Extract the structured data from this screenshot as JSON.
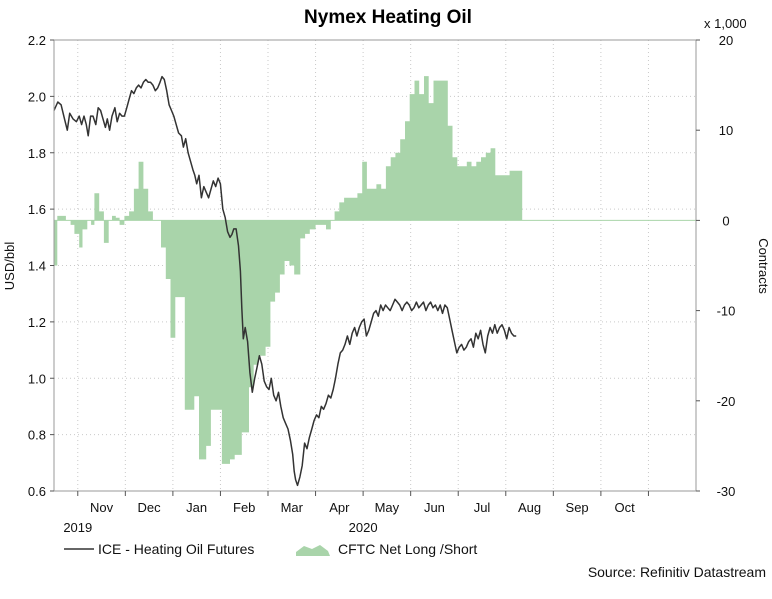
{
  "chart_data": {
    "type": "line+area",
    "title": "Nymex Heating Oil",
    "right_axis_multiplier": "x 1,000",
    "y_left": {
      "label": "USD/bbl",
      "range": [
        0.6,
        2.2
      ],
      "ticks": [
        "0.6",
        "0.8",
        "1.0",
        "1.2",
        "1.4",
        "1.6",
        "1.8",
        "2.0",
        "2.2"
      ]
    },
    "y_right": {
      "label": "Contracts",
      "range": [
        -30,
        20
      ],
      "ticks": [
        "-30",
        "-20",
        "-10",
        "0",
        "10",
        "20"
      ]
    },
    "x_axis": {
      "months": [
        "Nov",
        "Dec",
        "Jan",
        "Feb",
        "Mar",
        "Apr",
        "May",
        "Jun",
        "Jul",
        "Aug",
        "Sep",
        "Oct"
      ],
      "years": [
        "2019",
        "2020"
      ],
      "start_month_index": 9.5,
      "end_month_index": 22.95
    },
    "grid": true,
    "legend_position": "bottom",
    "legend": [
      "ICE - Heating Oil Futures",
      "CFTC Net Long /Short"
    ],
    "colors": {
      "line": "#333333",
      "area": "#a9d4aa",
      "grid": "#c9c9c9",
      "frame": "#9a9a9a"
    },
    "source": "Source: Refinitiv Datastream",
    "series": [
      {
        "name": "ICE - Heating Oil Futures",
        "axis": "left",
        "type": "line",
        "points": [
          [
            9.5,
            1.95
          ],
          [
            9.58,
            1.98
          ],
          [
            9.65,
            1.97
          ],
          [
            9.72,
            1.92
          ],
          [
            9.78,
            1.88
          ],
          [
            9.83,
            1.94
          ],
          [
            9.9,
            1.92
          ],
          [
            9.97,
            1.91
          ],
          [
            10.03,
            1.93
          ],
          [
            10.08,
            1.9
          ],
          [
            10.13,
            1.93
          ],
          [
            10.18,
            1.9
          ],
          [
            10.22,
            1.86
          ],
          [
            10.27,
            1.93
          ],
          [
            10.32,
            1.93
          ],
          [
            10.38,
            1.9
          ],
          [
            10.43,
            1.96
          ],
          [
            10.48,
            1.95
          ],
          [
            10.53,
            1.92
          ],
          [
            10.58,
            1.89
          ],
          [
            10.62,
            1.92
          ],
          [
            10.67,
            1.88
          ],
          [
            10.72,
            1.93
          ],
          [
            10.78,
            1.96
          ],
          [
            10.83,
            1.91
          ],
          [
            10.88,
            1.94
          ],
          [
            10.93,
            1.93
          ],
          [
            10.98,
            1.93
          ],
          [
            11.03,
            1.96
          ],
          [
            11.08,
            1.99
          ],
          [
            11.13,
            2.02
          ],
          [
            11.18,
            2.01
          ],
          [
            11.23,
            2.03
          ],
          [
            11.28,
            2.04
          ],
          [
            11.33,
            2.03
          ],
          [
            11.38,
            2.05
          ],
          [
            11.43,
            2.06
          ],
          [
            11.48,
            2.05
          ],
          [
            11.53,
            2.05
          ],
          [
            11.58,
            2.04
          ],
          [
            11.63,
            2.02
          ],
          [
            11.68,
            2.03
          ],
          [
            11.73,
            2.05
          ],
          [
            11.77,
            2.07
          ],
          [
            11.82,
            2.06
          ],
          [
            11.87,
            2.02
          ],
          [
            11.92,
            1.97
          ],
          [
            11.97,
            1.95
          ],
          [
            12.02,
            1.93
          ],
          [
            12.07,
            1.9
          ],
          [
            12.12,
            1.87
          ],
          [
            12.18,
            1.86
          ],
          [
            12.22,
            1.82
          ],
          [
            12.27,
            1.85
          ],
          [
            12.32,
            1.8
          ],
          [
            12.37,
            1.77
          ],
          [
            12.42,
            1.74
          ],
          [
            12.46,
            1.72
          ],
          [
            12.5,
            1.69
          ],
          [
            12.55,
            1.72
          ],
          [
            12.6,
            1.64
          ],
          [
            12.65,
            1.68
          ],
          [
            12.7,
            1.66
          ],
          [
            12.75,
            1.64
          ],
          [
            12.8,
            1.67
          ],
          [
            12.85,
            1.7
          ],
          [
            12.9,
            1.68
          ],
          [
            12.95,
            1.71
          ],
          [
            13.0,
            1.69
          ],
          [
            13.05,
            1.6
          ],
          [
            13.1,
            1.57
          ],
          [
            13.15,
            1.52
          ],
          [
            13.2,
            1.5
          ],
          [
            13.24,
            1.51
          ],
          [
            13.28,
            1.53
          ],
          [
            13.33,
            1.53
          ],
          [
            13.38,
            1.47
          ],
          [
            13.42,
            1.38
          ],
          [
            13.45,
            1.25
          ],
          [
            13.48,
            1.14
          ],
          [
            13.52,
            1.18
          ],
          [
            13.57,
            1.13
          ],
          [
            13.62,
            1.02
          ],
          [
            13.67,
            0.95
          ],
          [
            13.72,
            1.0
          ],
          [
            13.77,
            1.04
          ],
          [
            13.82,
            1.08
          ],
          [
            13.87,
            1.05
          ],
          [
            13.92,
            0.99
          ],
          [
            13.97,
            0.97
          ],
          [
            14.02,
            0.96
          ],
          [
            14.07,
            1.0
          ],
          [
            14.12,
            0.94
          ],
          [
            14.17,
            0.92
          ],
          [
            14.22,
            0.95
          ],
          [
            14.27,
            0.9
          ],
          [
            14.32,
            0.86
          ],
          [
            14.37,
            0.84
          ],
          [
            14.42,
            0.82
          ],
          [
            14.47,
            0.78
          ],
          [
            14.52,
            0.73
          ],
          [
            14.55,
            0.67
          ],
          [
            14.58,
            0.64
          ],
          [
            14.62,
            0.62
          ],
          [
            14.67,
            0.65
          ],
          [
            14.72,
            0.69
          ],
          [
            14.77,
            0.77
          ],
          [
            14.82,
            0.75
          ],
          [
            14.87,
            0.79
          ],
          [
            14.92,
            0.82
          ],
          [
            14.97,
            0.85
          ],
          [
            15.02,
            0.87
          ],
          [
            15.07,
            0.86
          ],
          [
            15.12,
            0.9
          ],
          [
            15.17,
            0.89
          ],
          [
            15.22,
            0.91
          ],
          [
            15.27,
            0.94
          ],
          [
            15.32,
            0.93
          ],
          [
            15.37,
            0.96
          ],
          [
            15.42,
            1.0
          ],
          [
            15.47,
            1.05
          ],
          [
            15.52,
            1.09
          ],
          [
            15.57,
            1.1
          ],
          [
            15.62,
            1.12
          ],
          [
            15.67,
            1.15
          ],
          [
            15.72,
            1.12
          ],
          [
            15.77,
            1.16
          ],
          [
            15.82,
            1.18
          ],
          [
            15.87,
            1.15
          ],
          [
            15.92,
            1.18
          ],
          [
            15.97,
            1.2
          ],
          [
            16.02,
            1.21
          ],
          [
            16.07,
            1.15
          ],
          [
            16.12,
            1.17
          ],
          [
            16.17,
            1.2
          ],
          [
            16.22,
            1.23
          ],
          [
            16.27,
            1.24
          ],
          [
            16.32,
            1.22
          ],
          [
            16.37,
            1.26
          ],
          [
            16.42,
            1.24
          ],
          [
            16.47,
            1.26
          ],
          [
            16.52,
            1.25
          ],
          [
            16.57,
            1.24
          ],
          [
            16.62,
            1.26
          ],
          [
            16.67,
            1.28
          ],
          [
            16.72,
            1.27
          ],
          [
            16.77,
            1.26
          ],
          [
            16.82,
            1.24
          ],
          [
            16.87,
            1.26
          ],
          [
            16.92,
            1.27
          ],
          [
            16.97,
            1.26
          ],
          [
            17.02,
            1.24
          ],
          [
            17.07,
            1.25
          ],
          [
            17.12,
            1.27
          ],
          [
            17.17,
            1.25
          ],
          [
            17.22,
            1.26
          ],
          [
            17.27,
            1.27
          ],
          [
            17.32,
            1.24
          ],
          [
            17.37,
            1.26
          ],
          [
            17.42,
            1.27
          ],
          [
            17.47,
            1.25
          ],
          [
            17.52,
            1.26
          ],
          [
            17.57,
            1.24
          ],
          [
            17.62,
            1.26
          ],
          [
            17.67,
            1.23
          ],
          [
            17.72,
            1.26
          ],
          [
            17.77,
            1.25
          ],
          [
            17.82,
            1.21
          ],
          [
            17.87,
            1.17
          ],
          [
            17.92,
            1.13
          ],
          [
            17.97,
            1.09
          ],
          [
            18.02,
            1.11
          ],
          [
            18.07,
            1.12
          ],
          [
            18.12,
            1.1
          ],
          [
            18.17,
            1.11
          ],
          [
            18.22,
            1.13
          ],
          [
            18.27,
            1.14
          ],
          [
            18.32,
            1.11
          ],
          [
            18.37,
            1.16
          ],
          [
            18.42,
            1.14
          ],
          [
            18.47,
            1.17
          ],
          [
            18.52,
            1.12
          ],
          [
            18.57,
            1.09
          ],
          [
            18.62,
            1.15
          ],
          [
            18.67,
            1.18
          ],
          [
            18.72,
            1.16
          ],
          [
            18.77,
            1.19
          ],
          [
            18.82,
            1.16
          ],
          [
            18.87,
            1.18
          ],
          [
            18.92,
            1.19
          ],
          [
            18.97,
            1.17
          ],
          [
            19.02,
            1.14
          ],
          [
            19.07,
            1.18
          ],
          [
            19.12,
            1.16
          ],
          [
            19.17,
            1.15
          ],
          [
            19.22,
            1.15
          ]
        ]
      },
      {
        "name": "CFTC Net Long /Short",
        "axis": "right",
        "type": "step-area",
        "points": [
          [
            9.5,
            -5
          ],
          [
            9.57,
            0.5
          ],
          [
            9.75,
            0
          ],
          [
            9.85,
            -0.5
          ],
          [
            9.93,
            -1.5
          ],
          [
            10.03,
            -3
          ],
          [
            10.1,
            -1
          ],
          [
            10.2,
            0
          ],
          [
            10.28,
            -0.5
          ],
          [
            10.35,
            3
          ],
          [
            10.45,
            1
          ],
          [
            10.55,
            -2.5
          ],
          [
            10.65,
            0
          ],
          [
            10.72,
            0.5
          ],
          [
            10.8,
            0.3
          ],
          [
            10.88,
            -0.5
          ],
          [
            10.98,
            0.5
          ],
          [
            11.08,
            1
          ],
          [
            11.18,
            3.5
          ],
          [
            11.28,
            6.5
          ],
          [
            11.38,
            3.5
          ],
          [
            11.48,
            1
          ],
          [
            11.58,
            0
          ],
          [
            11.75,
            -3
          ],
          [
            11.85,
            -6.5
          ],
          [
            11.95,
            -13
          ],
          [
            12.05,
            -8.5
          ],
          [
            12.25,
            -21
          ],
          [
            12.45,
            -19.5
          ],
          [
            12.55,
            -26.5
          ],
          [
            12.7,
            -25
          ],
          [
            12.8,
            -21
          ],
          [
            12.93,
            -21
          ],
          [
            13.03,
            -27
          ],
          [
            13.2,
            -26.5
          ],
          [
            13.3,
            -26
          ],
          [
            13.45,
            -23.5
          ],
          [
            13.6,
            -18.5
          ],
          [
            13.7,
            -16
          ],
          [
            13.8,
            -15
          ],
          [
            13.95,
            -14
          ],
          [
            14.05,
            -9
          ],
          [
            14.15,
            -8
          ],
          [
            14.25,
            -6
          ],
          [
            14.35,
            -4.5
          ],
          [
            14.45,
            -5
          ],
          [
            14.55,
            -6
          ],
          [
            14.68,
            -2
          ],
          [
            14.78,
            -1.5
          ],
          [
            14.88,
            -1
          ],
          [
            15.0,
            -0.5
          ],
          [
            15.1,
            -0.5
          ],
          [
            15.22,
            -1
          ],
          [
            15.32,
            0
          ],
          [
            15.4,
            1
          ],
          [
            15.5,
            2
          ],
          [
            15.6,
            2.5
          ],
          [
            15.7,
            2.5
          ],
          [
            15.78,
            2.5
          ],
          [
            15.88,
            3
          ],
          [
            15.98,
            6.5
          ],
          [
            16.08,
            3.5
          ],
          [
            16.18,
            3.5
          ],
          [
            16.28,
            4
          ],
          [
            16.38,
            3.5
          ],
          [
            16.48,
            6
          ],
          [
            16.58,
            7
          ],
          [
            16.68,
            7.5
          ],
          [
            16.78,
            9
          ],
          [
            16.88,
            11
          ],
          [
            16.98,
            14
          ],
          [
            17.08,
            15.5
          ],
          [
            17.18,
            14
          ],
          [
            17.28,
            16
          ],
          [
            17.38,
            13
          ],
          [
            17.48,
            15.5
          ],
          [
            17.58,
            15.5
          ],
          [
            17.68,
            15.5
          ],
          [
            17.78,
            10.5
          ],
          [
            17.88,
            7
          ],
          [
            17.98,
            6
          ],
          [
            18.08,
            6
          ],
          [
            18.18,
            6.5
          ],
          [
            18.28,
            6
          ],
          [
            18.38,
            6.5
          ],
          [
            18.48,
            7
          ],
          [
            18.58,
            7.5
          ],
          [
            18.68,
            8
          ],
          [
            18.78,
            5
          ],
          [
            18.88,
            5
          ],
          [
            18.98,
            5
          ],
          [
            19.08,
            5.5
          ],
          [
            19.22,
            5.5
          ]
        ]
      }
    ]
  }
}
